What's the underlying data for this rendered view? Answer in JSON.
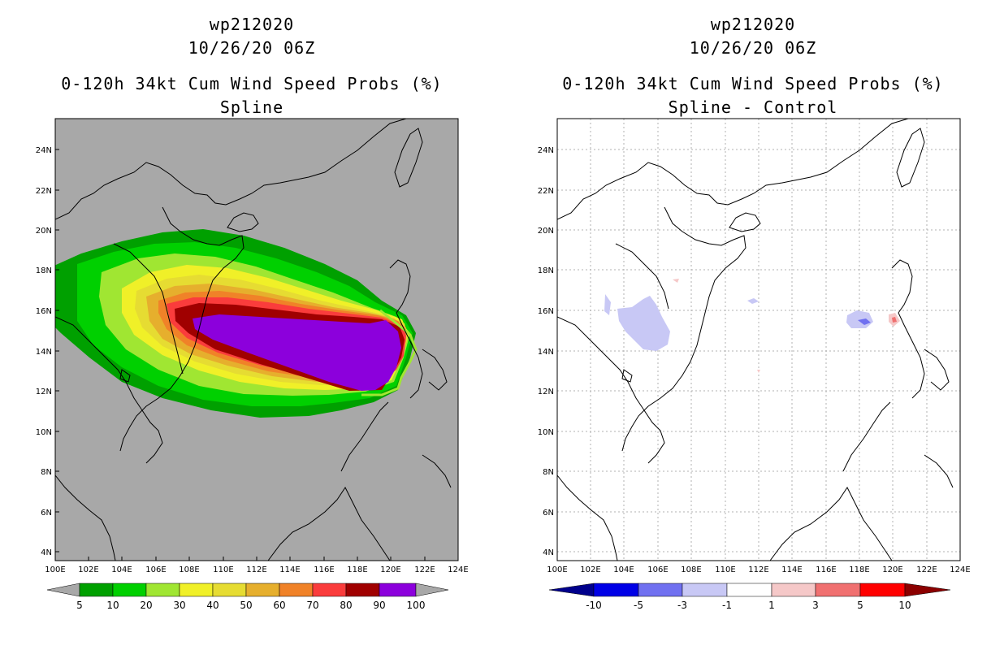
{
  "colors": {
    "land_bg": "#a8a8a8",
    "prob_bands": [
      "#00a000",
      "#00d000",
      "#a0e632",
      "#f0f028",
      "#e6dc32",
      "#e6af2d",
      "#f08228",
      "#fa3c3c",
      "#a00000",
      "#8c00dc"
    ],
    "diff_bands": [
      "#00008c",
      "#0000e6",
      "#7070f0",
      "#c8c8f5",
      "#ffffff",
      "#f5c8c8",
      "#f07070",
      "#ff0000",
      "#8c0000"
    ]
  },
  "left_panel": {
    "title_line1": "wp212020",
    "title_line2": "10/26/20 06Z",
    "title_line3": "0-120h 34kt Cum Wind Speed Probs (%)",
    "title_line4": "Spline",
    "colorbar_labels": [
      "5",
      "10",
      "20",
      "30",
      "40",
      "50",
      "60",
      "70",
      "80",
      "90",
      "100"
    ]
  },
  "right_panel": {
    "title_line1": "wp212020",
    "title_line2": "10/26/20 06Z",
    "title_line3": "0-120h 34kt Cum Wind Speed Probs (%)",
    "title_line4": "Spline - Control",
    "colorbar_labels": [
      "-10",
      "-5",
      "-3",
      "-1",
      "1",
      "3",
      "5",
      "10"
    ]
  },
  "axes": {
    "lat_labels": [
      "24N",
      "22N",
      "20N",
      "18N",
      "16N",
      "14N",
      "12N",
      "10N",
      "8N",
      "6N",
      "4N"
    ],
    "lon_labels": [
      "100E",
      "102E",
      "104E",
      "106E",
      "108E",
      "110E",
      "112E",
      "114E",
      "116E",
      "118E",
      "120E",
      "122E",
      "124E"
    ]
  }
}
